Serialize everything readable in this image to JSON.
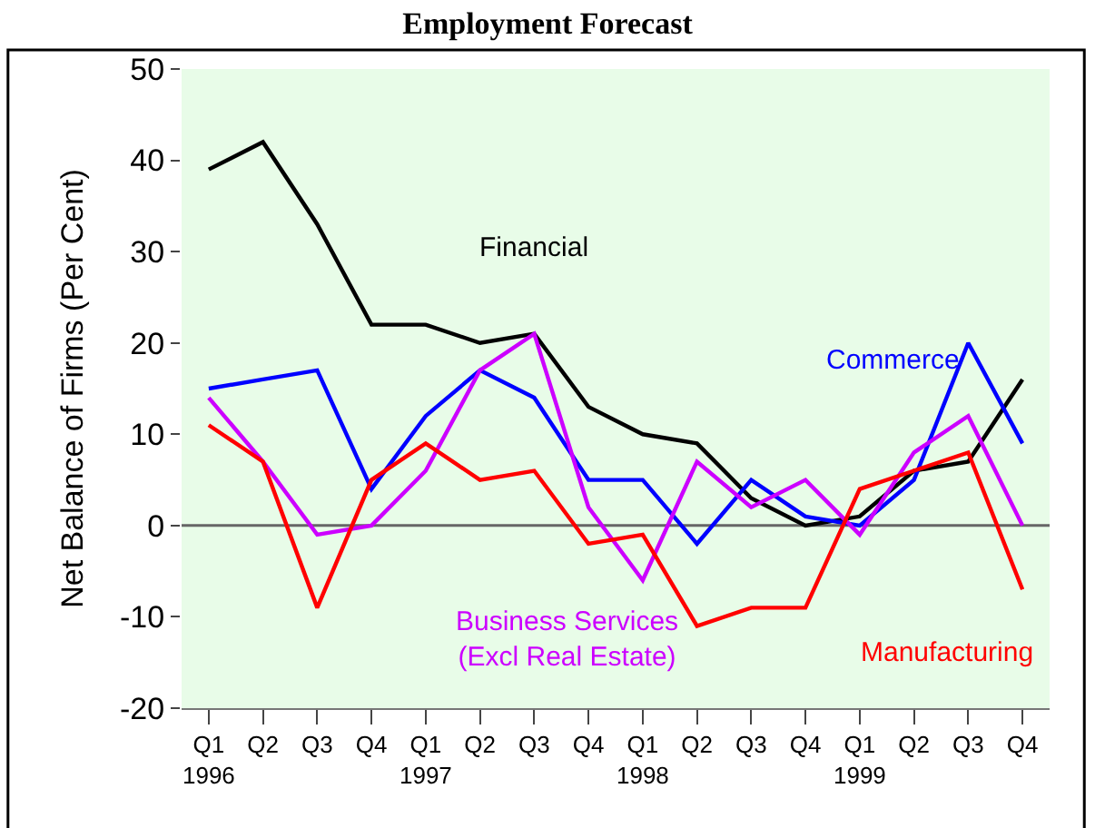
{
  "chart_data": {
    "type": "line",
    "title": "Employment Forecast",
    "ylabel": "Net Balance of Firms (Per Cent)",
    "categories": [
      "Q1\n1996",
      "Q2",
      "Q3",
      "Q4",
      "Q1\n1997",
      "Q2",
      "Q3",
      "Q4",
      "Q1\n1998",
      "Q2",
      "Q3",
      "Q4",
      "Q1\n1999",
      "Q2",
      "Q3",
      "Q4"
    ],
    "series": [
      {
        "name": "Financial",
        "color": "#000000",
        "values": [
          39,
          42,
          33,
          22,
          22,
          20,
          21,
          13,
          10,
          9,
          3,
          0,
          1,
          6,
          7,
          16
        ]
      },
      {
        "name": "Commerce",
        "color": "#0000ff",
        "values": [
          15,
          16,
          17,
          4,
          12,
          17,
          14,
          5,
          5,
          -2,
          5,
          1,
          0,
          5,
          20,
          9
        ]
      },
      {
        "name": "Business Services\n(Excl Real Estate)",
        "color": "#cc00ff",
        "values": [
          14,
          7,
          -1,
          0,
          6,
          17,
          21,
          2,
          -6,
          7,
          2,
          5,
          -1,
          8,
          12,
          0
        ]
      },
      {
        "name": "Manufacturing",
        "color": "#ff0000",
        "values": [
          11,
          7,
          -9,
          5,
          9,
          5,
          6,
          -2,
          -1,
          -11,
          -9,
          -9,
          4,
          6,
          8,
          -7
        ]
      }
    ],
    "ylim": [
      -20,
      50
    ],
    "yticks": [
      -20,
      -10,
      0,
      10,
      20,
      30,
      40,
      50
    ],
    "ref_lines": [
      {
        "axis": "y",
        "value": 0,
        "color": "#666666"
      }
    ],
    "grid": false,
    "legend": false,
    "marker": "none",
    "line_style": "solid"
  }
}
